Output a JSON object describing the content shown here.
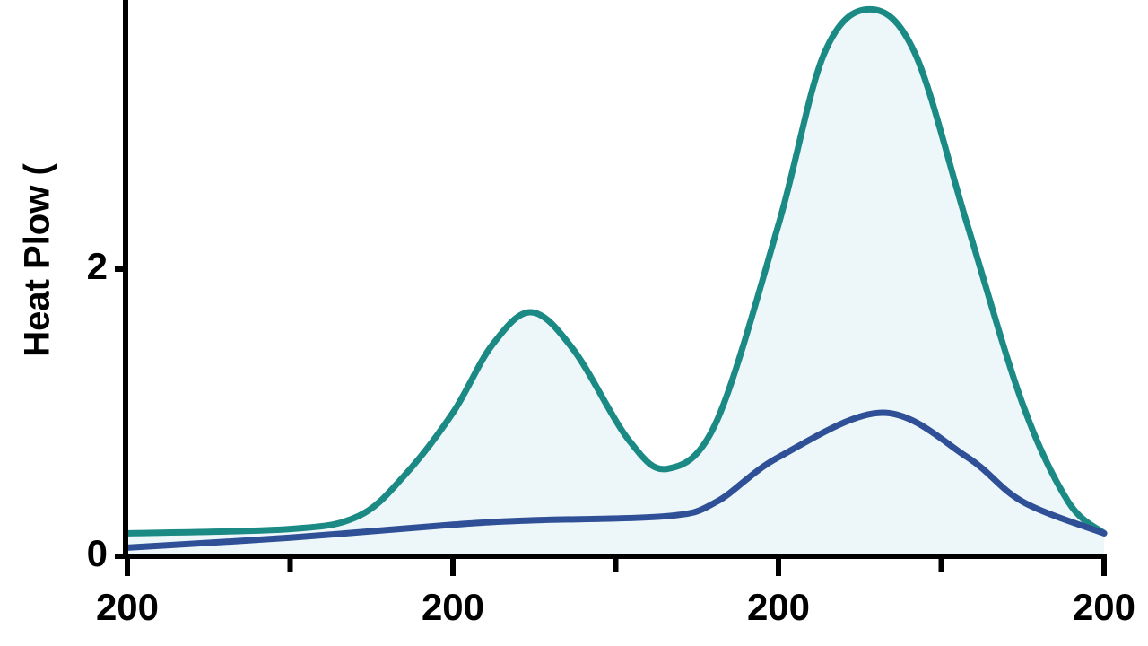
{
  "chart_data": {
    "type": "line",
    "y_label": "Heat Plow (",
    "xlim": [
      0,
      3
    ],
    "xticks": [
      {
        "value": 0,
        "label": "200"
      },
      {
        "value": 1,
        "label": "200"
      },
      {
        "value": 2,
        "label": "200"
      },
      {
        "value": 3,
        "label": "200"
      }
    ],
    "xminor_ticks": [
      0.5,
      1.5,
      2.5
    ],
    "ylim": [
      0,
      3.875
    ],
    "yticks": [
      0,
      2
    ],
    "fill_under_first_series": true,
    "fill_color": "#edf6f8",
    "series": [
      {
        "color": "#1b8a84",
        "x": [
          0,
          0.5,
          0.71,
          0.85,
          1.0,
          1.12,
          1.24,
          1.37,
          1.54,
          1.66,
          1.81,
          2.0,
          2.14,
          2.28,
          2.42,
          2.58,
          2.75,
          2.89,
          3.0
        ],
        "values": [
          0.16,
          0.19,
          0.28,
          0.56,
          1.0,
          1.47,
          1.7,
          1.44,
          0.81,
          0.61,
          0.94,
          2.31,
          3.5,
          3.81,
          3.5,
          2.31,
          1.06,
          0.38,
          0.16
        ]
      },
      {
        "color": "#2f4f96",
        "x": [
          0,
          0.5,
          1.0,
          1.24,
          1.66,
          1.81,
          2.0,
          2.32,
          2.58,
          2.75,
          3.0
        ],
        "values": [
          0.06,
          0.13,
          0.22,
          0.25,
          0.28,
          0.38,
          0.69,
          1.0,
          0.69,
          0.38,
          0.16
        ]
      }
    ]
  }
}
